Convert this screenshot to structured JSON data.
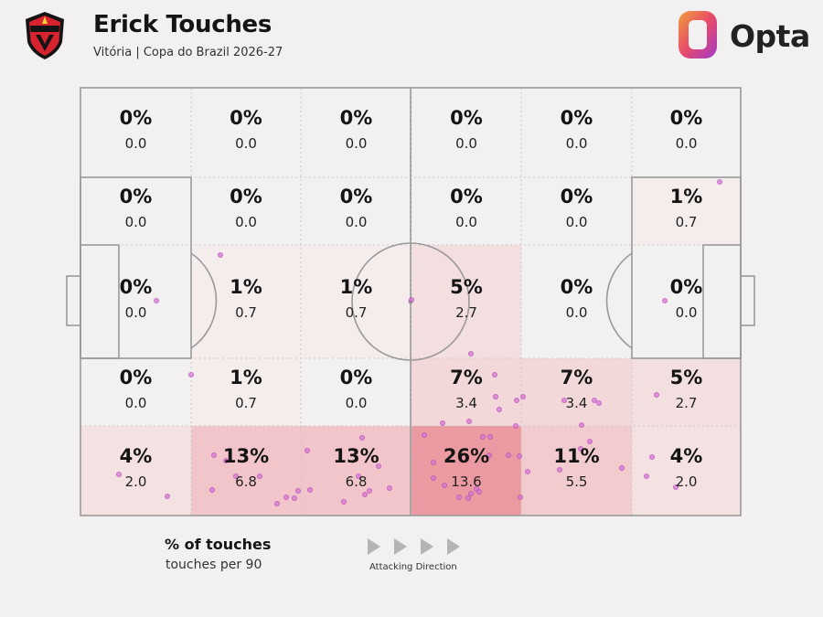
{
  "header": {
    "player_name": "Erick Touches",
    "subtitle": "Vitória | Copa do Brazil 2026-27",
    "club_crest_icon": "vitoria-crest-icon",
    "brand": "Opta"
  },
  "heatmap": {
    "cols": 6,
    "rows": 5,
    "cells": [
      [
        {
          "pct": "0%",
          "val": "0.0"
        },
        {
          "pct": "0%",
          "val": "0.0"
        },
        {
          "pct": "0%",
          "val": "0.0"
        },
        {
          "pct": "0%",
          "val": "0.0"
        },
        {
          "pct": "0%",
          "val": "0.0"
        },
        {
          "pct": "0%",
          "val": "0.0"
        }
      ],
      [
        {
          "pct": "0%",
          "val": "0.0"
        },
        {
          "pct": "0%",
          "val": "0.0"
        },
        {
          "pct": "0%",
          "val": "0.0"
        },
        {
          "pct": "0%",
          "val": "0.0"
        },
        {
          "pct": "0%",
          "val": "0.0"
        },
        {
          "pct": "1%",
          "val": "0.7"
        }
      ],
      [
        {
          "pct": "0%",
          "val": "0.0"
        },
        {
          "pct": "1%",
          "val": "0.7"
        },
        {
          "pct": "1%",
          "val": "0.7"
        },
        {
          "pct": "5%",
          "val": "2.7"
        },
        {
          "pct": "0%",
          "val": "0.0"
        },
        {
          "pct": "0%",
          "val": "0.0"
        }
      ],
      [
        {
          "pct": "0%",
          "val": "0.0"
        },
        {
          "pct": "1%",
          "val": "0.7"
        },
        {
          "pct": "0%",
          "val": "0.0"
        },
        {
          "pct": "7%",
          "val": "3.4"
        },
        {
          "pct": "7%",
          "val": "3.4"
        },
        {
          "pct": "5%",
          "val": "2.7"
        }
      ],
      [
        {
          "pct": "4%",
          "val": "2.0"
        },
        {
          "pct": "13%",
          "val": "6.8"
        },
        {
          "pct": "13%",
          "val": "6.8"
        },
        {
          "pct": "26%",
          "val": "13.6"
        },
        {
          "pct": "11%",
          "val": "5.5"
        },
        {
          "pct": "4%",
          "val": "2.0"
        }
      ]
    ],
    "touches": [
      [
        787,
        199
      ],
      [
        727,
        329
      ],
      [
        241,
        279
      ],
      [
        171,
        329
      ],
      [
        450,
        328
      ],
      [
        209,
        410
      ],
      [
        541,
        410
      ],
      [
        515,
        387
      ],
      [
        542,
        434
      ],
      [
        546,
        448
      ],
      [
        565,
        438
      ],
      [
        564,
        466
      ],
      [
        572,
        434
      ],
      [
        617,
        438
      ],
      [
        650,
        438
      ],
      [
        655,
        441
      ],
      [
        718,
        432
      ],
      [
        484,
        463
      ],
      [
        513,
        461
      ],
      [
        464,
        476
      ],
      [
        528,
        478
      ],
      [
        536,
        478
      ],
      [
        535,
        498
      ],
      [
        474,
        506
      ],
      [
        474,
        523
      ],
      [
        486,
        531
      ],
      [
        502,
        544
      ],
      [
        515,
        540
      ],
      [
        521,
        535
      ],
      [
        512,
        545
      ],
      [
        524,
        538
      ],
      [
        556,
        498
      ],
      [
        568,
        499
      ],
      [
        577,
        516
      ],
      [
        569,
        544
      ],
      [
        636,
        465
      ],
      [
        645,
        483
      ],
      [
        635,
        491
      ],
      [
        612,
        514
      ],
      [
        680,
        512
      ],
      [
        234,
        498
      ],
      [
        247,
        504
      ],
      [
        284,
        521
      ],
      [
        258,
        521
      ],
      [
        232,
        536
      ],
      [
        303,
        551
      ],
      [
        313,
        544
      ],
      [
        322,
        545
      ],
      [
        326,
        537
      ],
      [
        336,
        493
      ],
      [
        339,
        536
      ],
      [
        396,
        479
      ],
      [
        392,
        521
      ],
      [
        399,
        541
      ],
      [
        414,
        510
      ],
      [
        404,
        537
      ],
      [
        426,
        534
      ],
      [
        376,
        549
      ],
      [
        130,
        519
      ],
      [
        183,
        543
      ],
      [
        713,
        500
      ],
      [
        707,
        521
      ],
      [
        739,
        533
      ]
    ],
    "colors": {
      "scale_low": "#f5efef",
      "scale_high": "#ec9aa2",
      "dot": "#d46fd3",
      "line": "#9a9a9a"
    }
  },
  "legend": {
    "main": "% of touches",
    "sub": "touches per 90"
  },
  "direction": {
    "label": "Attacking Direction",
    "arrow_icon": "play-arrow-icon",
    "arrow_count": 4
  }
}
